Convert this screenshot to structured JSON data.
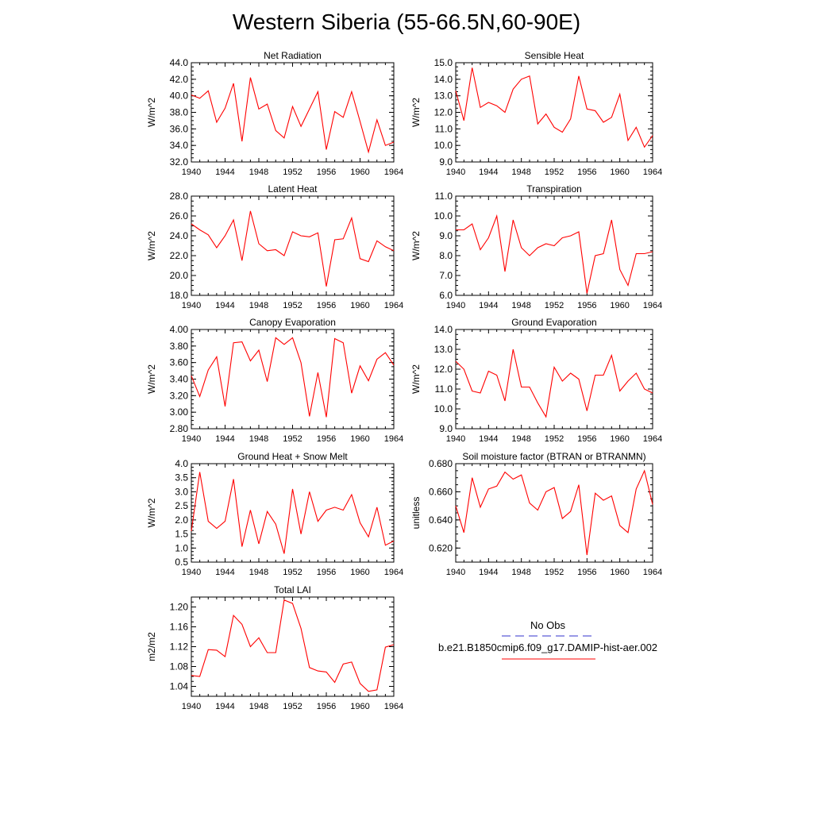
{
  "page": {
    "title": "Western Siberia (55-66.5N,60-90E)"
  },
  "legend": {
    "obs_label": "No Obs",
    "obs_color": "#3333cc",
    "model_label": "b.e21.B1850cmip6.f09_g17.DAMIP-hist-aer.002",
    "model_color": "#ff0000"
  },
  "chart_data": [
    {
      "type": "line",
      "title": "Net Radiation",
      "ylabel": "W/m^2",
      "xlim": [
        1940,
        1964
      ],
      "ylim": [
        32,
        44
      ],
      "xticks": [
        1940,
        1944,
        1948,
        1952,
        1956,
        1960,
        1964
      ],
      "yticks": [
        "32.0",
        "34.0",
        "36.0",
        "38.0",
        "40.0",
        "42.0",
        "44.0"
      ],
      "x": [
        1940,
        1941,
        1942,
        1943,
        1944,
        1945,
        1946,
        1947,
        1948,
        1949,
        1950,
        1951,
        1952,
        1953,
        1954,
        1955,
        1956,
        1957,
        1958,
        1959,
        1960,
        1961,
        1962,
        1963,
        1964
      ],
      "series": [
        {
          "values": [
            40.1,
            39.7,
            40.6,
            36.8,
            38.5,
            41.5,
            34.5,
            42.2,
            38.4,
            39.0,
            35.8,
            34.9,
            38.7,
            36.3,
            38.4,
            40.5,
            33.5,
            38.1,
            37.4,
            40.5,
            36.9,
            33.2,
            37.1,
            34.0,
            34.4
          ]
        }
      ]
    },
    {
      "type": "line",
      "title": "Sensible Heat",
      "ylabel": "W/m^2",
      "xlim": [
        1940,
        1964
      ],
      "ylim": [
        9,
        15
      ],
      "xticks": [
        1940,
        1944,
        1948,
        1952,
        1956,
        1960,
        1964
      ],
      "yticks": [
        "9.0",
        "10.0",
        "11.0",
        "12.0",
        "13.0",
        "14.0",
        "15.0"
      ],
      "x": [
        1940,
        1941,
        1942,
        1943,
        1944,
        1945,
        1946,
        1947,
        1948,
        1949,
        1950,
        1951,
        1952,
        1953,
        1954,
        1955,
        1956,
        1957,
        1958,
        1959,
        1960,
        1961,
        1962,
        1963,
        1964
      ],
      "series": [
        {
          "values": [
            13.3,
            11.5,
            14.7,
            12.3,
            12.6,
            12.4,
            12.0,
            13.4,
            14.0,
            14.2,
            11.3,
            11.9,
            11.1,
            10.8,
            11.6,
            14.2,
            12.2,
            12.1,
            11.4,
            11.7,
            13.1,
            10.3,
            11.1,
            9.9,
            10.6
          ]
        }
      ]
    },
    {
      "type": "line",
      "title": "Latent Heat",
      "ylabel": "W/m^2",
      "xlim": [
        1940,
        1964
      ],
      "ylim": [
        18,
        28
      ],
      "xticks": [
        1940,
        1944,
        1948,
        1952,
        1956,
        1960,
        1964
      ],
      "yticks": [
        "18.0",
        "20.0",
        "22.0",
        "24.0",
        "26.0",
        "28.0"
      ],
      "x": [
        1940,
        1941,
        1942,
        1943,
        1944,
        1945,
        1946,
        1947,
        1948,
        1949,
        1950,
        1951,
        1952,
        1953,
        1954,
        1955,
        1956,
        1957,
        1958,
        1959,
        1960,
        1961,
        1962,
        1963,
        1964
      ],
      "series": [
        {
          "values": [
            25.2,
            24.6,
            24.1,
            22.8,
            24.0,
            25.6,
            21.5,
            26.5,
            23.2,
            22.5,
            22.6,
            22.0,
            24.4,
            24.0,
            23.9,
            24.3,
            18.9,
            23.6,
            23.7,
            25.8,
            21.7,
            21.4,
            23.5,
            22.9,
            22.5
          ]
        }
      ]
    },
    {
      "type": "line",
      "title": "Transpiration",
      "ylabel": "W/m^2",
      "xlim": [
        1940,
        1964
      ],
      "ylim": [
        6,
        11
      ],
      "xticks": [
        1940,
        1944,
        1948,
        1952,
        1956,
        1960,
        1964
      ],
      "yticks": [
        "6.0",
        "7.0",
        "8.0",
        "9.0",
        "10.0",
        "11.0"
      ],
      "x": [
        1940,
        1941,
        1942,
        1943,
        1944,
        1945,
        1946,
        1947,
        1948,
        1949,
        1950,
        1951,
        1952,
        1953,
        1954,
        1955,
        1956,
        1957,
        1958,
        1959,
        1960,
        1961,
        1962,
        1963,
        1964
      ],
      "series": [
        {
          "values": [
            9.3,
            9.3,
            9.6,
            8.3,
            8.9,
            10.0,
            7.2,
            9.8,
            8.4,
            8.0,
            8.4,
            8.6,
            8.5,
            8.9,
            9.0,
            9.2,
            6.1,
            8.0,
            8.1,
            9.8,
            7.3,
            6.5,
            8.1,
            8.1,
            8.2
          ]
        }
      ]
    },
    {
      "type": "line",
      "title": "Canopy Evaporation",
      "ylabel": "W/m^2",
      "xlim": [
        1940,
        1964
      ],
      "ylim": [
        2.8,
        4.0
      ],
      "xticks": [
        1940,
        1944,
        1948,
        1952,
        1956,
        1960,
        1964
      ],
      "yticks": [
        "2.80",
        "3.00",
        "3.20",
        "3.40",
        "3.60",
        "3.80",
        "4.00"
      ],
      "x": [
        1940,
        1941,
        1942,
        1943,
        1944,
        1945,
        1946,
        1947,
        1948,
        1949,
        1950,
        1951,
        1952,
        1953,
        1954,
        1955,
        1956,
        1957,
        1958,
        1959,
        1960,
        1961,
        1962,
        1963,
        1964
      ],
      "series": [
        {
          "values": [
            3.44,
            3.19,
            3.51,
            3.67,
            3.07,
            3.84,
            3.85,
            3.62,
            3.75,
            3.37,
            3.9,
            3.82,
            3.9,
            3.6,
            2.95,
            3.48,
            2.94,
            3.89,
            3.84,
            3.23,
            3.56,
            3.38,
            3.64,
            3.72,
            3.57
          ]
        }
      ]
    },
    {
      "type": "line",
      "title": "Ground Evaporation",
      "ylabel": "W/m^2",
      "xlim": [
        1940,
        1964
      ],
      "ylim": [
        9,
        14
      ],
      "xticks": [
        1940,
        1944,
        1948,
        1952,
        1956,
        1960,
        1964
      ],
      "yticks": [
        "9.0",
        "10.0",
        "11.0",
        "12.0",
        "13.0",
        "14.0"
      ],
      "x": [
        1940,
        1941,
        1942,
        1943,
        1944,
        1945,
        1946,
        1947,
        1948,
        1949,
        1950,
        1951,
        1952,
        1953,
        1954,
        1955,
        1956,
        1957,
        1958,
        1959,
        1960,
        1961,
        1962,
        1963,
        1964
      ],
      "series": [
        {
          "values": [
            12.4,
            12.0,
            10.9,
            10.8,
            11.9,
            11.7,
            10.4,
            13.0,
            11.1,
            11.1,
            10.3,
            9.6,
            12.1,
            11.4,
            11.8,
            11.5,
            9.9,
            11.7,
            11.7,
            12.7,
            10.9,
            11.4,
            11.8,
            11.0,
            10.8
          ]
        }
      ]
    },
    {
      "type": "line",
      "title": "Ground Heat + Snow Melt",
      "ylabel": "W/m^2",
      "xlim": [
        1940,
        1964
      ],
      "ylim": [
        0.5,
        4.0
      ],
      "xticks": [
        1940,
        1944,
        1948,
        1952,
        1956,
        1960,
        1964
      ],
      "yticks": [
        "0.5",
        "1.0",
        "1.5",
        "2.0",
        "2.5",
        "3.0",
        "3.5",
        "4.0"
      ],
      "x": [
        1940,
        1941,
        1942,
        1943,
        1944,
        1945,
        1946,
        1947,
        1948,
        1949,
        1950,
        1951,
        1952,
        1953,
        1954,
        1955,
        1956,
        1957,
        1958,
        1959,
        1960,
        1961,
        1962,
        1963,
        1964
      ],
      "series": [
        {
          "values": [
            1.6,
            3.7,
            1.95,
            1.7,
            1.95,
            3.45,
            1.05,
            2.35,
            1.15,
            2.3,
            1.85,
            0.8,
            3.1,
            1.5,
            3.0,
            1.95,
            2.35,
            2.45,
            2.35,
            2.9,
            1.9,
            1.4,
            2.45,
            1.1,
            1.25
          ]
        }
      ]
    },
    {
      "type": "line",
      "title": "Soil moisture factor (BTRAN or BTRANMN)",
      "ylabel": "unitless",
      "xlim": [
        1940,
        1964
      ],
      "ylim": [
        0.61,
        0.68
      ],
      "xticks": [
        1940,
        1944,
        1948,
        1952,
        1956,
        1960,
        1964
      ],
      "yticks": [
        "0.620",
        "0.640",
        "0.660",
        "0.680"
      ],
      "x": [
        1940,
        1941,
        1942,
        1943,
        1944,
        1945,
        1946,
        1947,
        1948,
        1949,
        1950,
        1951,
        1952,
        1953,
        1954,
        1955,
        1956,
        1957,
        1958,
        1959,
        1960,
        1961,
        1962,
        1963,
        1964
      ],
      "series": [
        {
          "values": [
            0.65,
            0.631,
            0.67,
            0.649,
            0.662,
            0.664,
            0.674,
            0.669,
            0.672,
            0.652,
            0.647,
            0.66,
            0.663,
            0.641,
            0.646,
            0.665,
            0.615,
            0.659,
            0.654,
            0.657,
            0.636,
            0.631,
            0.662,
            0.675,
            0.651
          ]
        }
      ]
    },
    {
      "type": "line",
      "title": "Total LAI",
      "ylabel": "m2/m2",
      "xlim": [
        1940,
        1964
      ],
      "ylim": [
        1.02,
        1.22
      ],
      "xticks": [
        1940,
        1944,
        1948,
        1952,
        1956,
        1960,
        1964
      ],
      "yticks": [
        "1.04",
        "1.08",
        "1.12",
        "1.16",
        "1.20"
      ],
      "x": [
        1940,
        1941,
        1942,
        1943,
        1944,
        1945,
        1946,
        1947,
        1948,
        1949,
        1950,
        1951,
        1952,
        1953,
        1954,
        1955,
        1956,
        1957,
        1958,
        1959,
        1960,
        1961,
        1962,
        1963,
        1964
      ],
      "series": [
        {
          "values": [
            1.062,
            1.06,
            1.114,
            1.113,
            1.1,
            1.183,
            1.165,
            1.12,
            1.138,
            1.108,
            1.108,
            1.214,
            1.207,
            1.157,
            1.078,
            1.071,
            1.069,
            1.048,
            1.085,
            1.089,
            1.046,
            1.03,
            1.033,
            1.119,
            1.124
          ]
        }
      ]
    }
  ]
}
